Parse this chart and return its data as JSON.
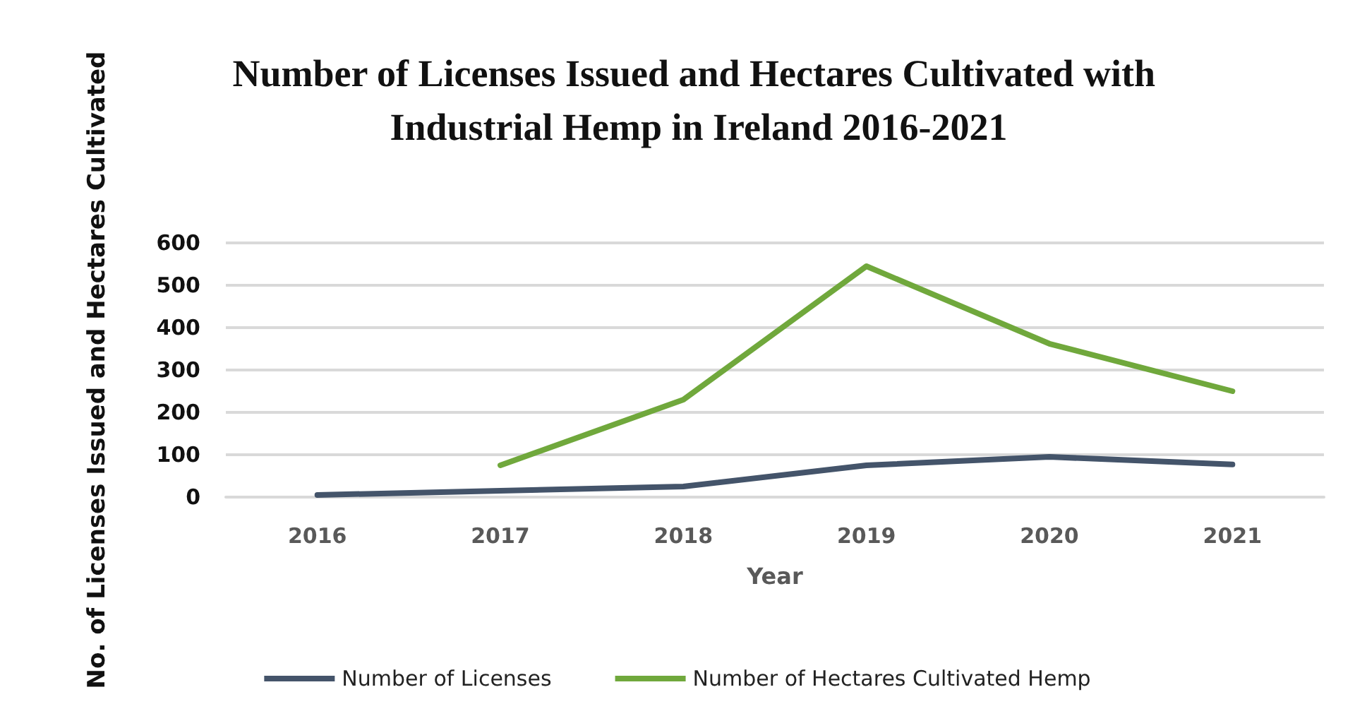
{
  "chart_data": {
    "type": "line",
    "title": "Number of Licenses Issued and Hectares Cultivated with Industrial Hemp in Ireland 2016-2021",
    "xlabel": "Year",
    "ylabel": "No. of Licenses Issued and Hectares Cultivated",
    "categories": [
      "2016",
      "2017",
      "2018",
      "2019",
      "2020",
      "2021"
    ],
    "series": [
      {
        "name": "Number of Licenses",
        "color": "#44546a",
        "values": [
          5,
          15,
          25,
          75,
          95,
          77
        ]
      },
      {
        "name": "Number of Hectares Cultivated Hemp",
        "color": "#70a83c",
        "values": [
          null,
          75,
          230,
          545,
          362,
          250
        ]
      }
    ],
    "ylim": [
      0,
      600
    ],
    "yticks": [
      0,
      100,
      200,
      300,
      400,
      500,
      600
    ],
    "grid": "y",
    "legend": "bottom",
    "marker": "none",
    "line_style": "solid"
  }
}
